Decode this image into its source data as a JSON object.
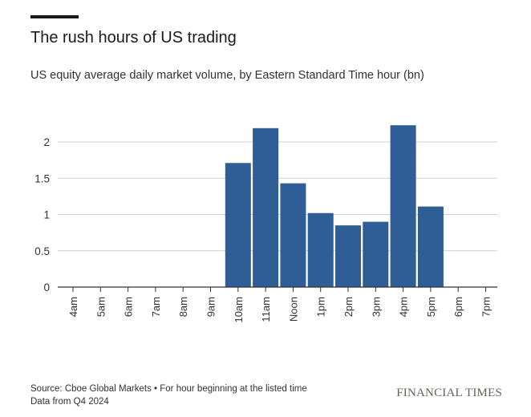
{
  "header": {
    "title": "The rush hours of US trading",
    "subtitle": "US equity average daily market volume, by Eastern Standard Time hour (bn)"
  },
  "footer": {
    "source": "Source: Cboe Global Markets • For hour beginning at the listed time",
    "note": "Data from Q4 2024",
    "brand": "FINANCIAL TIMES"
  },
  "colors": {
    "bar": "#2e5e95",
    "grid": "#cfcfcf",
    "axis": "#333333",
    "text": "#33302e"
  },
  "chart_data": {
    "type": "bar",
    "title": "The rush hours of US trading",
    "subtitle": "US equity average daily market volume, by Eastern Standard Time hour (bn)",
    "categories": [
      "4am",
      "5am",
      "6am",
      "7am",
      "8am",
      "9am",
      "10am",
      "11am",
      "Noon",
      "1pm",
      "2pm",
      "3pm",
      "4pm",
      "5pm",
      "6pm",
      "7pm"
    ],
    "values": [
      0,
      0,
      0,
      0,
      0,
      0,
      1.71,
      2.19,
      1.43,
      1.02,
      0.85,
      0.9,
      2.23,
      1.11,
      0,
      0
    ],
    "xlabel": "",
    "ylabel": "",
    "ylim": [
      0,
      2.5
    ],
    "yticks": [
      0,
      0.5,
      1,
      1.5,
      2
    ],
    "ytick_labels": [
      "0",
      "0.5",
      "1",
      "1.5",
      "2"
    ],
    "grid": true,
    "legend": "none"
  }
}
